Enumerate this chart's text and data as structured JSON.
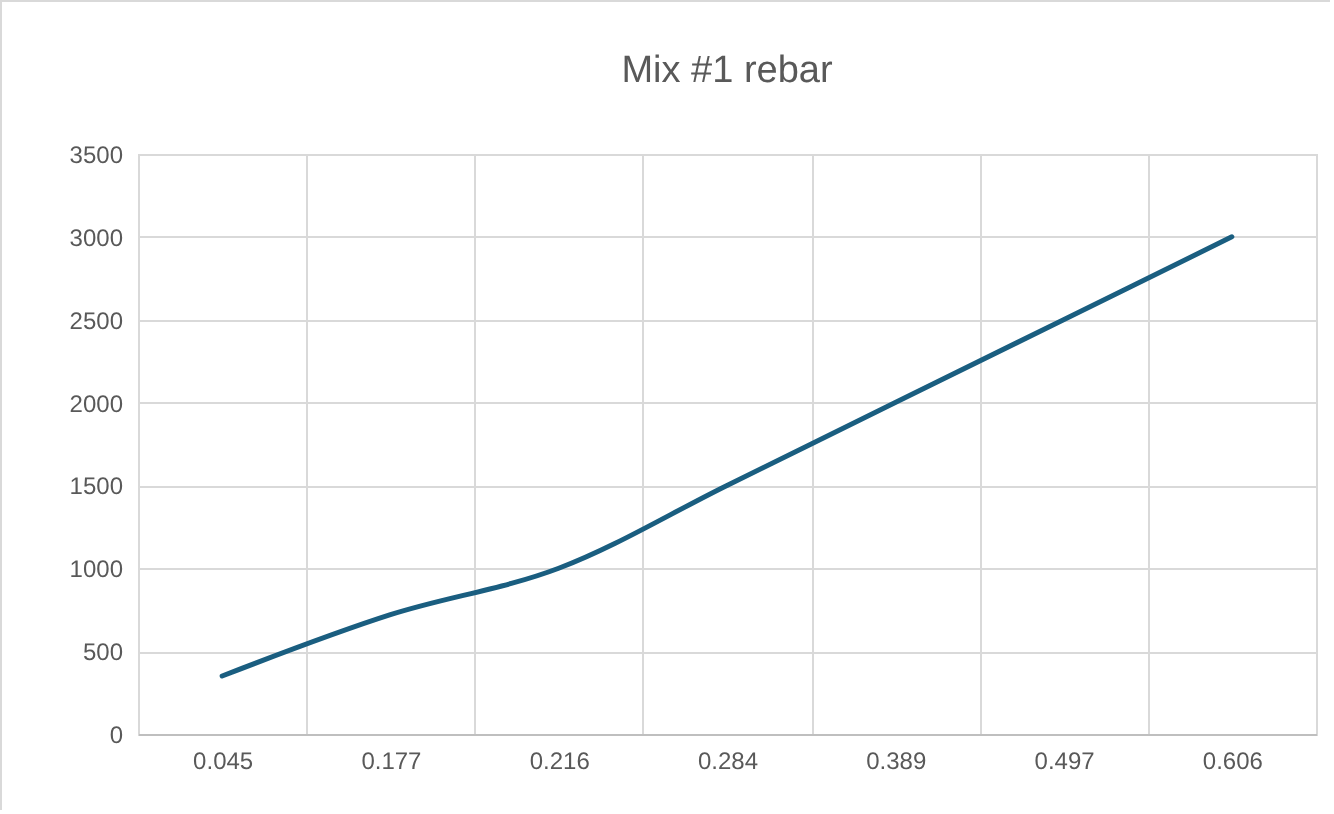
{
  "chart_data": {
    "type": "line",
    "title": "Mix #1 rebar",
    "categories": [
      "0.045",
      "0.177",
      "0.216",
      "0.284",
      "0.389",
      "0.497",
      "0.606"
    ],
    "series": [
      {
        "color": "#1a5e80",
        "values": [
          350,
          720,
          1000,
          1500,
          2000,
          2500,
          3000
        ]
      }
    ],
    "ylim": [
      0,
      3500
    ],
    "yticks": [
      0,
      500,
      1000,
      1500,
      2000,
      2500,
      3000,
      3500
    ],
    "grid": true,
    "marker": "none",
    "line_style": "solid"
  }
}
